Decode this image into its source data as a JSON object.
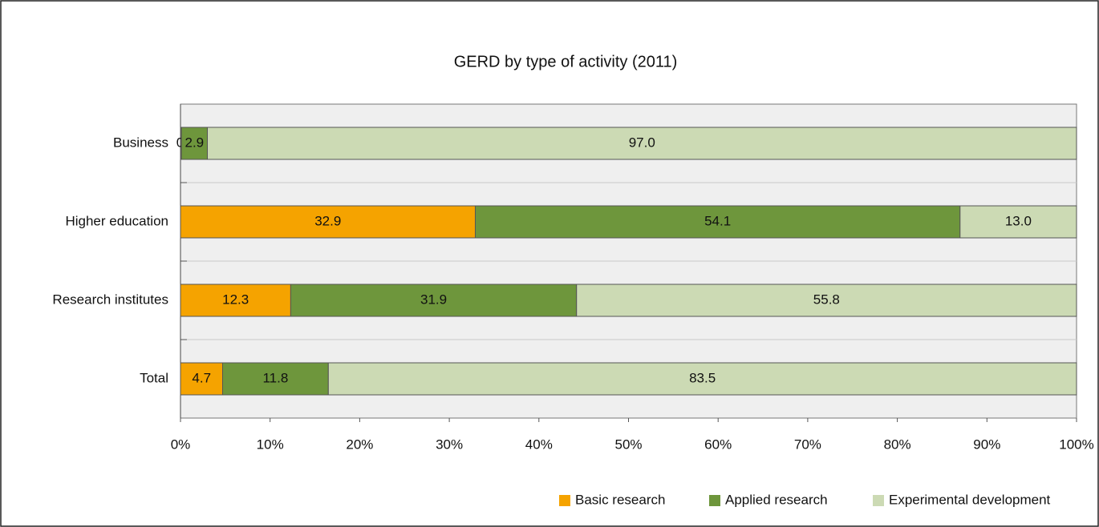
{
  "chart_data": {
    "type": "stacked_bar_horizontal",
    "title": "GERD by type of activity (2011)",
    "categories": [
      "Business",
      "Higher education",
      "Research institutes",
      "Total"
    ],
    "series": [
      {
        "name": "Basic research",
        "color": "#f5a300",
        "values": [
          0.1,
          32.9,
          12.3,
          4.7
        ],
        "value_labels": [
          "0.1",
          "32.9",
          "12.3",
          "4.7"
        ]
      },
      {
        "name": "Applied research",
        "color": "#6e963c",
        "values": [
          2.9,
          54.1,
          31.9,
          11.8
        ],
        "value_labels": [
          "2.9",
          "54.1",
          "31.9",
          "11.8"
        ]
      },
      {
        "name": "Experimental development",
        "color": "#ccdab4",
        "values": [
          97.0,
          13.0,
          55.8,
          83.5
        ],
        "value_labels": [
          "97.0",
          "13.0",
          "55.8",
          "83.5"
        ]
      }
    ],
    "xlim": [
      0,
      100
    ],
    "xticks": [
      {
        "value": 0,
        "label": "0%"
      },
      {
        "value": 10,
        "label": "10%"
      },
      {
        "value": 20,
        "label": "20%"
      },
      {
        "value": 30,
        "label": "30%"
      },
      {
        "value": 40,
        "label": "40%"
      },
      {
        "value": 50,
        "label": "50%"
      },
      {
        "value": 60,
        "label": "60%"
      },
      {
        "value": 70,
        "label": "70%"
      },
      {
        "value": 80,
        "label": "80%"
      },
      {
        "value": 90,
        "label": "90%"
      },
      {
        "value": 100,
        "label": "100%"
      }
    ],
    "legend": "bottom-right"
  }
}
